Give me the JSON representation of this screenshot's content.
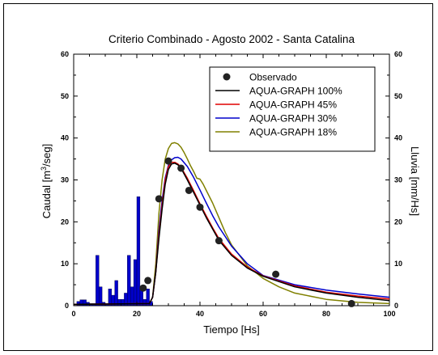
{
  "chart_data": {
    "type": "line",
    "title": "Criterio Combinado - Agosto 2002 - Santa Catalina",
    "xlabel": "Tiempo [Hs]",
    "ylabel": "Caudal [m³/seg]",
    "ylabel_parts": {
      "prefix": "Caudal [m",
      "sup": "3",
      "suffix": "/seg]"
    },
    "y2label": "Lluvia [mm/Hs]",
    "xlim": [
      0,
      100
    ],
    "ylim": [
      0,
      60
    ],
    "y2lim": [
      0,
      60
    ],
    "xticks": [
      "0",
      "20",
      "40",
      "60",
      "80",
      "100"
    ],
    "yticks": [
      "0",
      "10",
      "20",
      "30",
      "40",
      "50",
      "60"
    ],
    "y2ticks": [
      "0",
      "10",
      "20",
      "30",
      "40",
      "50",
      "60"
    ],
    "legend_position": "top-right",
    "rain": {
      "x": [
        1.5,
        2.5,
        3.5,
        4.5,
        5.5,
        6.5,
        7.5,
        8.5,
        9.5,
        10.5,
        11.5,
        12.5,
        13.5,
        14.5,
        15.5,
        16.5,
        17.5,
        18.5,
        19.5,
        20.5,
        21.5,
        22.5,
        23.5,
        24.5
      ],
      "values": [
        1.0,
        1.4,
        1.4,
        0.8,
        0.5,
        0.5,
        12.0,
        4.5,
        0.8,
        0.5,
        4.0,
        2.5,
        6.0,
        1.5,
        1.5,
        3.0,
        12.0,
        4.5,
        11.0,
        26.0,
        4.0,
        1.5,
        4.0,
        1.0
      ]
    },
    "observed": {
      "name": "Observado",
      "x": [
        22,
        23.5,
        27,
        30,
        34,
        36.5,
        40,
        46,
        64,
        88
      ],
      "y": [
        4.2,
        6,
        25.5,
        34.5,
        32.8,
        27.5,
        23.5,
        15.5,
        7.5,
        0.5
      ]
    },
    "series": [
      {
        "name": "AQUA-GRAPH 100%",
        "color": "#000000",
        "x": [
          0,
          24,
          25,
          26,
          27,
          28,
          29,
          30,
          31,
          32,
          33,
          34,
          36,
          38,
          40,
          42,
          44,
          46,
          50,
          55,
          60,
          70,
          80,
          90,
          100
        ],
        "y": [
          0.3,
          0.5,
          2,
          8,
          16,
          23,
          29,
          32.5,
          33.8,
          34,
          33.6,
          32.8,
          30,
          27,
          24,
          21,
          18.3,
          15.6,
          12,
          9,
          7,
          4.5,
          3,
          2,
          1.2
        ]
      },
      {
        "name": "AQUA-GRAPH  45%",
        "color": "#e00000",
        "x": [
          0,
          24,
          25,
          26,
          27,
          28,
          29,
          30,
          31,
          32,
          33,
          34,
          36,
          38,
          40,
          42,
          44,
          46,
          50,
          55,
          60,
          70,
          80,
          90,
          100
        ],
        "y": [
          0.3,
          0.5,
          2,
          8,
          17,
          24,
          30,
          33.2,
          34.2,
          34.2,
          33.8,
          33,
          30.4,
          27.4,
          24.3,
          21.4,
          18.6,
          16,
          12.3,
          9.2,
          7.1,
          4.7,
          3.2,
          2.3,
          1.6
        ]
      },
      {
        "name": "AQUA-GRAPH  30%",
        "color": "#0000cc",
        "x": [
          0,
          24,
          25,
          26,
          27,
          28,
          29,
          30,
          31,
          32,
          33,
          34,
          36,
          38,
          40,
          42,
          44,
          46,
          50,
          55,
          60,
          70,
          80,
          90,
          100
        ],
        "y": [
          0.3,
          0.5,
          2,
          8,
          18,
          25,
          30.5,
          33.5,
          34.8,
          35.3,
          35.4,
          35,
          33.2,
          30.6,
          27.6,
          24.5,
          21.5,
          18.8,
          14.2,
          10,
          7.2,
          5,
          3.7,
          2.8,
          2
        ]
      },
      {
        "name": "AQUA-GRAPH  18%",
        "color": "#808000",
        "x": [
          0,
          24,
          25,
          26,
          27,
          28,
          29,
          30,
          31,
          32,
          33,
          34,
          35,
          36,
          37,
          38,
          39,
          40,
          41,
          42,
          44,
          46,
          48,
          50,
          55,
          60,
          65,
          70,
          80,
          90,
          100
        ],
        "y": [
          0.3,
          0.5,
          2,
          10,
          22,
          30,
          35,
          37.5,
          38.7,
          38.9,
          38.6,
          37.8,
          36.5,
          35,
          33.4,
          32,
          30.4,
          30.2,
          29,
          27.5,
          24.5,
          21,
          17.5,
          14.5,
          9.5,
          6.5,
          4.5,
          3,
          1.5,
          0.8,
          0.5
        ]
      }
    ]
  }
}
